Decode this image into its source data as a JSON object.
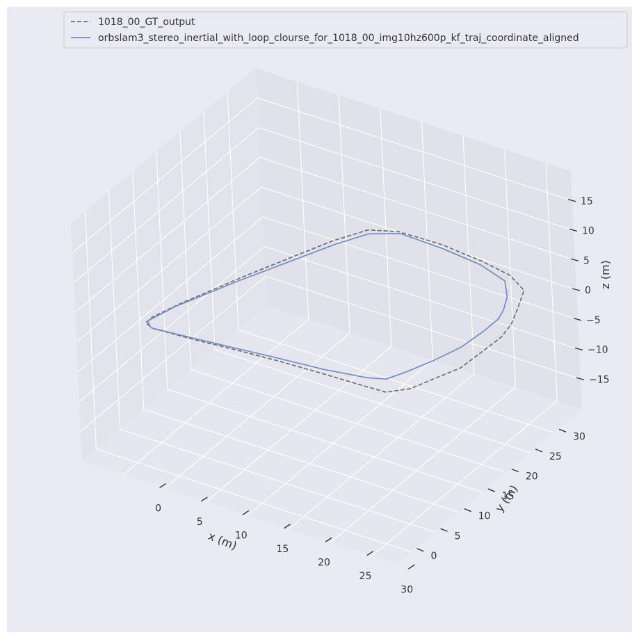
{
  "chart_data": {
    "type": "line",
    "projection": "3d",
    "title": "",
    "xlabel": "x (m)",
    "ylabel": "y (m)",
    "zlabel": "z (m)",
    "xlim": [
      -5,
      33
    ],
    "ylim": [
      -3,
      36
    ],
    "zlim": [
      -20,
      20
    ],
    "xticks": [
      "0",
      "5",
      "10",
      "15",
      "20",
      "25",
      "30"
    ],
    "yticks": [
      "0",
      "5",
      "10",
      "15",
      "20",
      "25",
      "30"
    ],
    "zticks": [
      "−15",
      "−10",
      "−5",
      "0",
      "5",
      "10",
      "15"
    ],
    "grid": true,
    "legend_position": "top",
    "series": [
      {
        "name": "1018_00_GT_output",
        "color": "#6e6e6e",
        "dashed": true,
        "x": [
          0.2,
          5,
          10,
          15,
          20,
          25,
          27.5,
          29,
          30,
          31,
          31.5,
          32,
          31.5,
          30.5,
          29,
          26,
          22,
          17,
          12,
          9,
          7,
          3,
          0,
          -1,
          -1,
          0.2
        ],
        "y": [
          4,
          4.2,
          4.6,
          4.9,
          5,
          5,
          5.5,
          8,
          12,
          15,
          18,
          22,
          25,
          28,
          32,
          34.2,
          35.2,
          35.7,
          35.3,
          34,
          30,
          19,
          10,
          6,
          4.6,
          4
        ],
        "z": [
          0,
          0.2,
          0.4,
          0.6,
          0.8,
          1,
          0.7,
          0.3,
          0,
          0,
          0.5,
          1,
          1,
          1,
          0.8,
          0.5,
          0.4,
          0.5,
          0.7,
          0.5,
          0.4,
          0.2,
          0,
          0,
          0,
          0
        ]
      },
      {
        "name": "orbslam3_stereo_inertial_with_loop_clourse_for_1018_00_img10hz600p_kf_traj_coordinate_aligned",
        "color": "#6f8fc5",
        "dashed": false,
        "x": [
          0,
          5,
          10,
          15,
          20,
          25,
          27,
          28,
          29,
          30,
          30.5,
          30.5,
          30,
          29,
          27,
          23,
          18,
          13,
          10,
          8,
          3,
          0,
          -1,
          0
        ],
        "y": [
          4,
          4.3,
          4.7,
          5.1,
          5.4,
          5.8,
          6.5,
          9,
          13,
          17,
          21,
          24,
          26,
          28.5,
          31.5,
          33.3,
          34,
          34,
          32.5,
          29,
          17,
          9,
          5,
          4
        ],
        "z": [
          0,
          0.3,
          0.6,
          0.9,
          1.2,
          1.8,
          2,
          2,
          1.7,
          1.7,
          2,
          2,
          2,
          2,
          1.8,
          1.5,
          1.5,
          1.7,
          1.3,
          1,
          0.5,
          0.2,
          0,
          0
        ]
      }
    ]
  }
}
